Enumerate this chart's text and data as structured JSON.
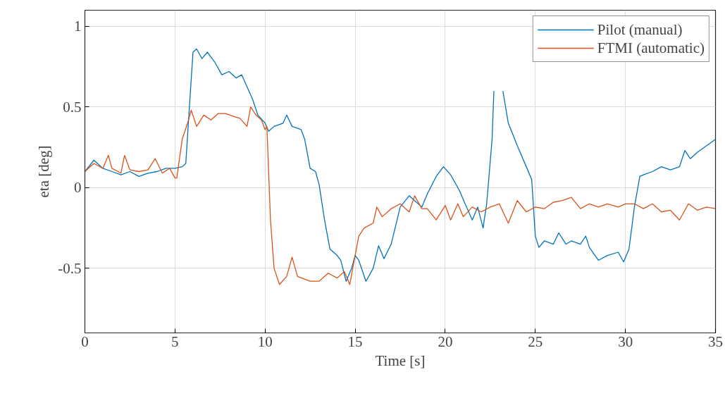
{
  "chart_data": {
    "type": "line",
    "xlabel": "Time [s]",
    "ylabel": "eta [deg]",
    "xlim": [
      0,
      35
    ],
    "ylim": [
      -0.9,
      1.1
    ],
    "xticks": [
      0,
      5,
      10,
      15,
      20,
      25,
      30,
      35
    ],
    "yticks": [
      -0.5,
      0,
      0.5,
      1
    ],
    "grid": true,
    "legend": "top right",
    "line_style": "solid",
    "series": [
      {
        "name": "Pilot (manual)",
        "color": "#0072bd",
        "x": [
          0,
          0.5,
          1,
          1.5,
          2,
          2.5,
          3,
          3.5,
          4,
          4.5,
          5,
          5.4,
          5.6,
          5.8,
          6.0,
          6.2,
          6.5,
          6.8,
          7.2,
          7.6,
          8,
          8.4,
          8.7,
          8.9,
          9.3,
          9.6,
          10,
          10.2,
          10.5,
          11,
          11.2,
          11.5,
          12,
          12.2,
          12.5,
          12.8,
          13,
          13.3,
          13.6,
          14,
          14.2,
          14.5,
          14.8,
          15,
          15.2,
          15.6,
          16,
          16.3,
          16.6,
          17,
          17.5,
          18,
          18.3,
          18.7,
          19,
          19.5,
          19.9,
          20.3,
          20.8,
          21.1,
          21.5,
          21.8,
          22.1,
          22.3,
          22.6,
          22.7,
          22.9,
          23.1,
          23.2,
          23.5,
          24,
          24.5,
          24.8,
          25,
          25.2,
          25.5,
          26,
          26.3,
          26.7,
          27,
          27.5,
          27.8,
          28,
          28.5,
          29,
          29.6,
          29.9,
          30.2,
          30.5,
          30.8,
          31,
          31.5,
          32,
          32.5,
          33,
          33.3,
          33.6,
          34,
          35
        ],
        "values": [
          0.1,
          0.17,
          0.12,
          0.1,
          0.08,
          0.1,
          0.07,
          0.09,
          0.1,
          0.12,
          0.12,
          0.13,
          0.15,
          0.5,
          0.84,
          0.86,
          0.8,
          0.84,
          0.78,
          0.7,
          0.72,
          0.68,
          0.7,
          0.65,
          0.55,
          0.45,
          0.4,
          0.35,
          0.38,
          0.4,
          0.45,
          0.38,
          0.36,
          0.3,
          0.12,
          0.1,
          0.02,
          -0.2,
          -0.38,
          -0.42,
          -0.45,
          -0.58,
          -0.5,
          -0.42,
          -0.45,
          -0.58,
          -0.5,
          -0.36,
          -0.44,
          -0.35,
          -0.12,
          -0.05,
          -0.08,
          -0.12,
          -0.04,
          0.07,
          0.13,
          0.08,
          -0.02,
          -0.1,
          -0.2,
          -0.12,
          -0.25,
          -0.1,
          0.3,
          0.6,
          null,
          null,
          0.6,
          0.4,
          0.26,
          0.13,
          0.05,
          -0.3,
          -0.37,
          -0.33,
          -0.35,
          -0.28,
          -0.35,
          -0.33,
          -0.35,
          -0.3,
          -0.37,
          -0.45,
          -0.42,
          -0.4,
          -0.46,
          -0.38,
          -0.12,
          0.07,
          0.08,
          0.1,
          0.13,
          0.11,
          0.13,
          0.23,
          0.18,
          0.22,
          0.3
        ]
      },
      {
        "name": "FTMI (automatic)",
        "color": "#d95319",
        "x": [
          0,
          0.5,
          1,
          1.3,
          1.5,
          2,
          2.2,
          2.5,
          3,
          3.5,
          3.9,
          4.3,
          4.7,
          5,
          5.1,
          5.4,
          5.7,
          5.9,
          6.2,
          6.6,
          7,
          7.4,
          7.8,
          8.3,
          8.6,
          9,
          9.2,
          9.5,
          9.8,
          10,
          10.1,
          10.3,
          10.5,
          10.8,
          11.2,
          11.5,
          11.8,
          12.5,
          13,
          13.5,
          14,
          14.4,
          14.7,
          15,
          15.2,
          15.5,
          16,
          16.2,
          16.5,
          17,
          17.5,
          18,
          18.3,
          18.7,
          19,
          19.5,
          20,
          20.3,
          20.7,
          21,
          21.5,
          22,
          22.5,
          23,
          23.5,
          24,
          24.5,
          25,
          25.5,
          26,
          26.5,
          27,
          27.5,
          28,
          28.5,
          29,
          29.6,
          30,
          30.5,
          31,
          31.5,
          32,
          32.5,
          33,
          33.5,
          34,
          34.5,
          35
        ],
        "values": [
          0.1,
          0.15,
          0.12,
          0.2,
          0.12,
          0.09,
          0.2,
          0.11,
          0.1,
          0.11,
          0.18,
          0.09,
          0.12,
          0.06,
          0.06,
          0.3,
          0.4,
          0.48,
          0.38,
          0.45,
          0.42,
          0.46,
          0.46,
          0.44,
          0.43,
          0.38,
          0.5,
          0.45,
          0.42,
          0.36,
          0.38,
          -0.2,
          -0.5,
          -0.6,
          -0.55,
          -0.43,
          -0.55,
          -0.58,
          -0.58,
          -0.53,
          -0.56,
          -0.52,
          -0.6,
          -0.42,
          -0.3,
          -0.25,
          -0.22,
          -0.12,
          -0.18,
          -0.13,
          -0.1,
          -0.15,
          -0.05,
          -0.13,
          -0.13,
          -0.2,
          -0.11,
          -0.2,
          -0.1,
          -0.18,
          -0.12,
          -0.15,
          -0.12,
          -0.1,
          -0.22,
          -0.08,
          -0.15,
          -0.12,
          -0.13,
          -0.09,
          -0.08,
          -0.06,
          -0.13,
          -0.1,
          -0.12,
          -0.1,
          -0.12,
          -0.1,
          -0.1,
          -0.13,
          -0.1,
          -0.15,
          -0.14,
          -0.2,
          -0.1,
          -0.14,
          -0.12,
          -0.13
        ]
      }
    ]
  }
}
